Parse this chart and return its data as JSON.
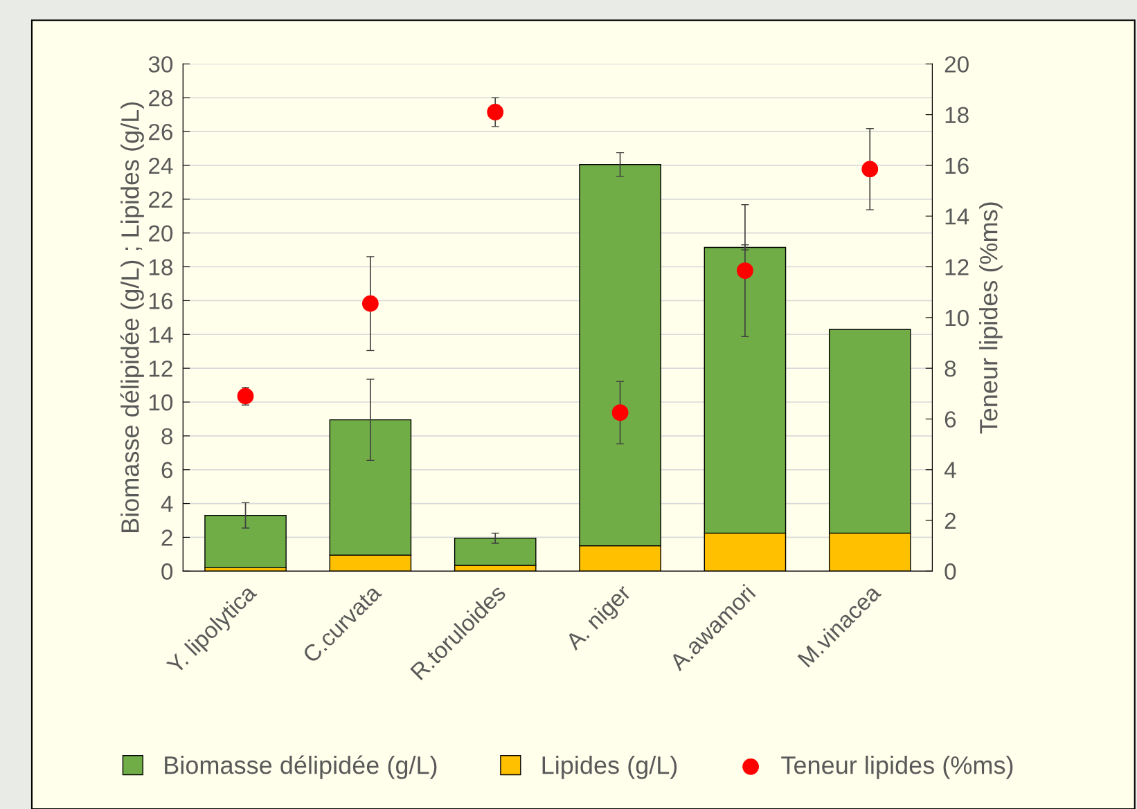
{
  "chart_data": {
    "type": "bar",
    "stacked": true,
    "categories": [
      "Y. lipolytica",
      "C.curvata",
      "R.toruloides",
      "A. niger",
      "A.awamori",
      "M.vinacea"
    ],
    "ylabel": "Biomasse délipidée (g/L) ; Lipides (g/L)",
    "y2label": "Teneur lipides (%ms)",
    "ylim": [
      0,
      30
    ],
    "yticks": [
      0,
      2,
      4,
      6,
      8,
      10,
      12,
      14,
      16,
      18,
      20,
      22,
      24,
      26,
      28,
      30
    ],
    "y2lim": [
      0,
      20
    ],
    "y2ticks": [
      0,
      2,
      4,
      6,
      8,
      10,
      12,
      14,
      16,
      18,
      20
    ],
    "grid": "y",
    "legend": "bottom",
    "series": [
      {
        "name": "Lipides (g/L)",
        "color": "#ffc000",
        "values": [
          0.2,
          0.95,
          0.35,
          1.5,
          2.25,
          2.25
        ]
      },
      {
        "name": "Biomasse délipidée (g/L)",
        "color": "#70ad47",
        "values": [
          3.1,
          8.0,
          1.6,
          22.55,
          16.9,
          12.05
        ],
        "errors": [
          0.75,
          2.4,
          0.3,
          0.7,
          0.15,
          null
        ]
      },
      {
        "name": "Teneur lipides (%ms)",
        "type": "scatter",
        "axis": "y2",
        "marker": "circle",
        "color": "#ff0000",
        "values": [
          6.9,
          10.55,
          18.1,
          6.25,
          11.85,
          15.85
        ],
        "errors": [
          0.35,
          1.85,
          0.57,
          1.23,
          2.6,
          1.6
        ]
      }
    ]
  }
}
